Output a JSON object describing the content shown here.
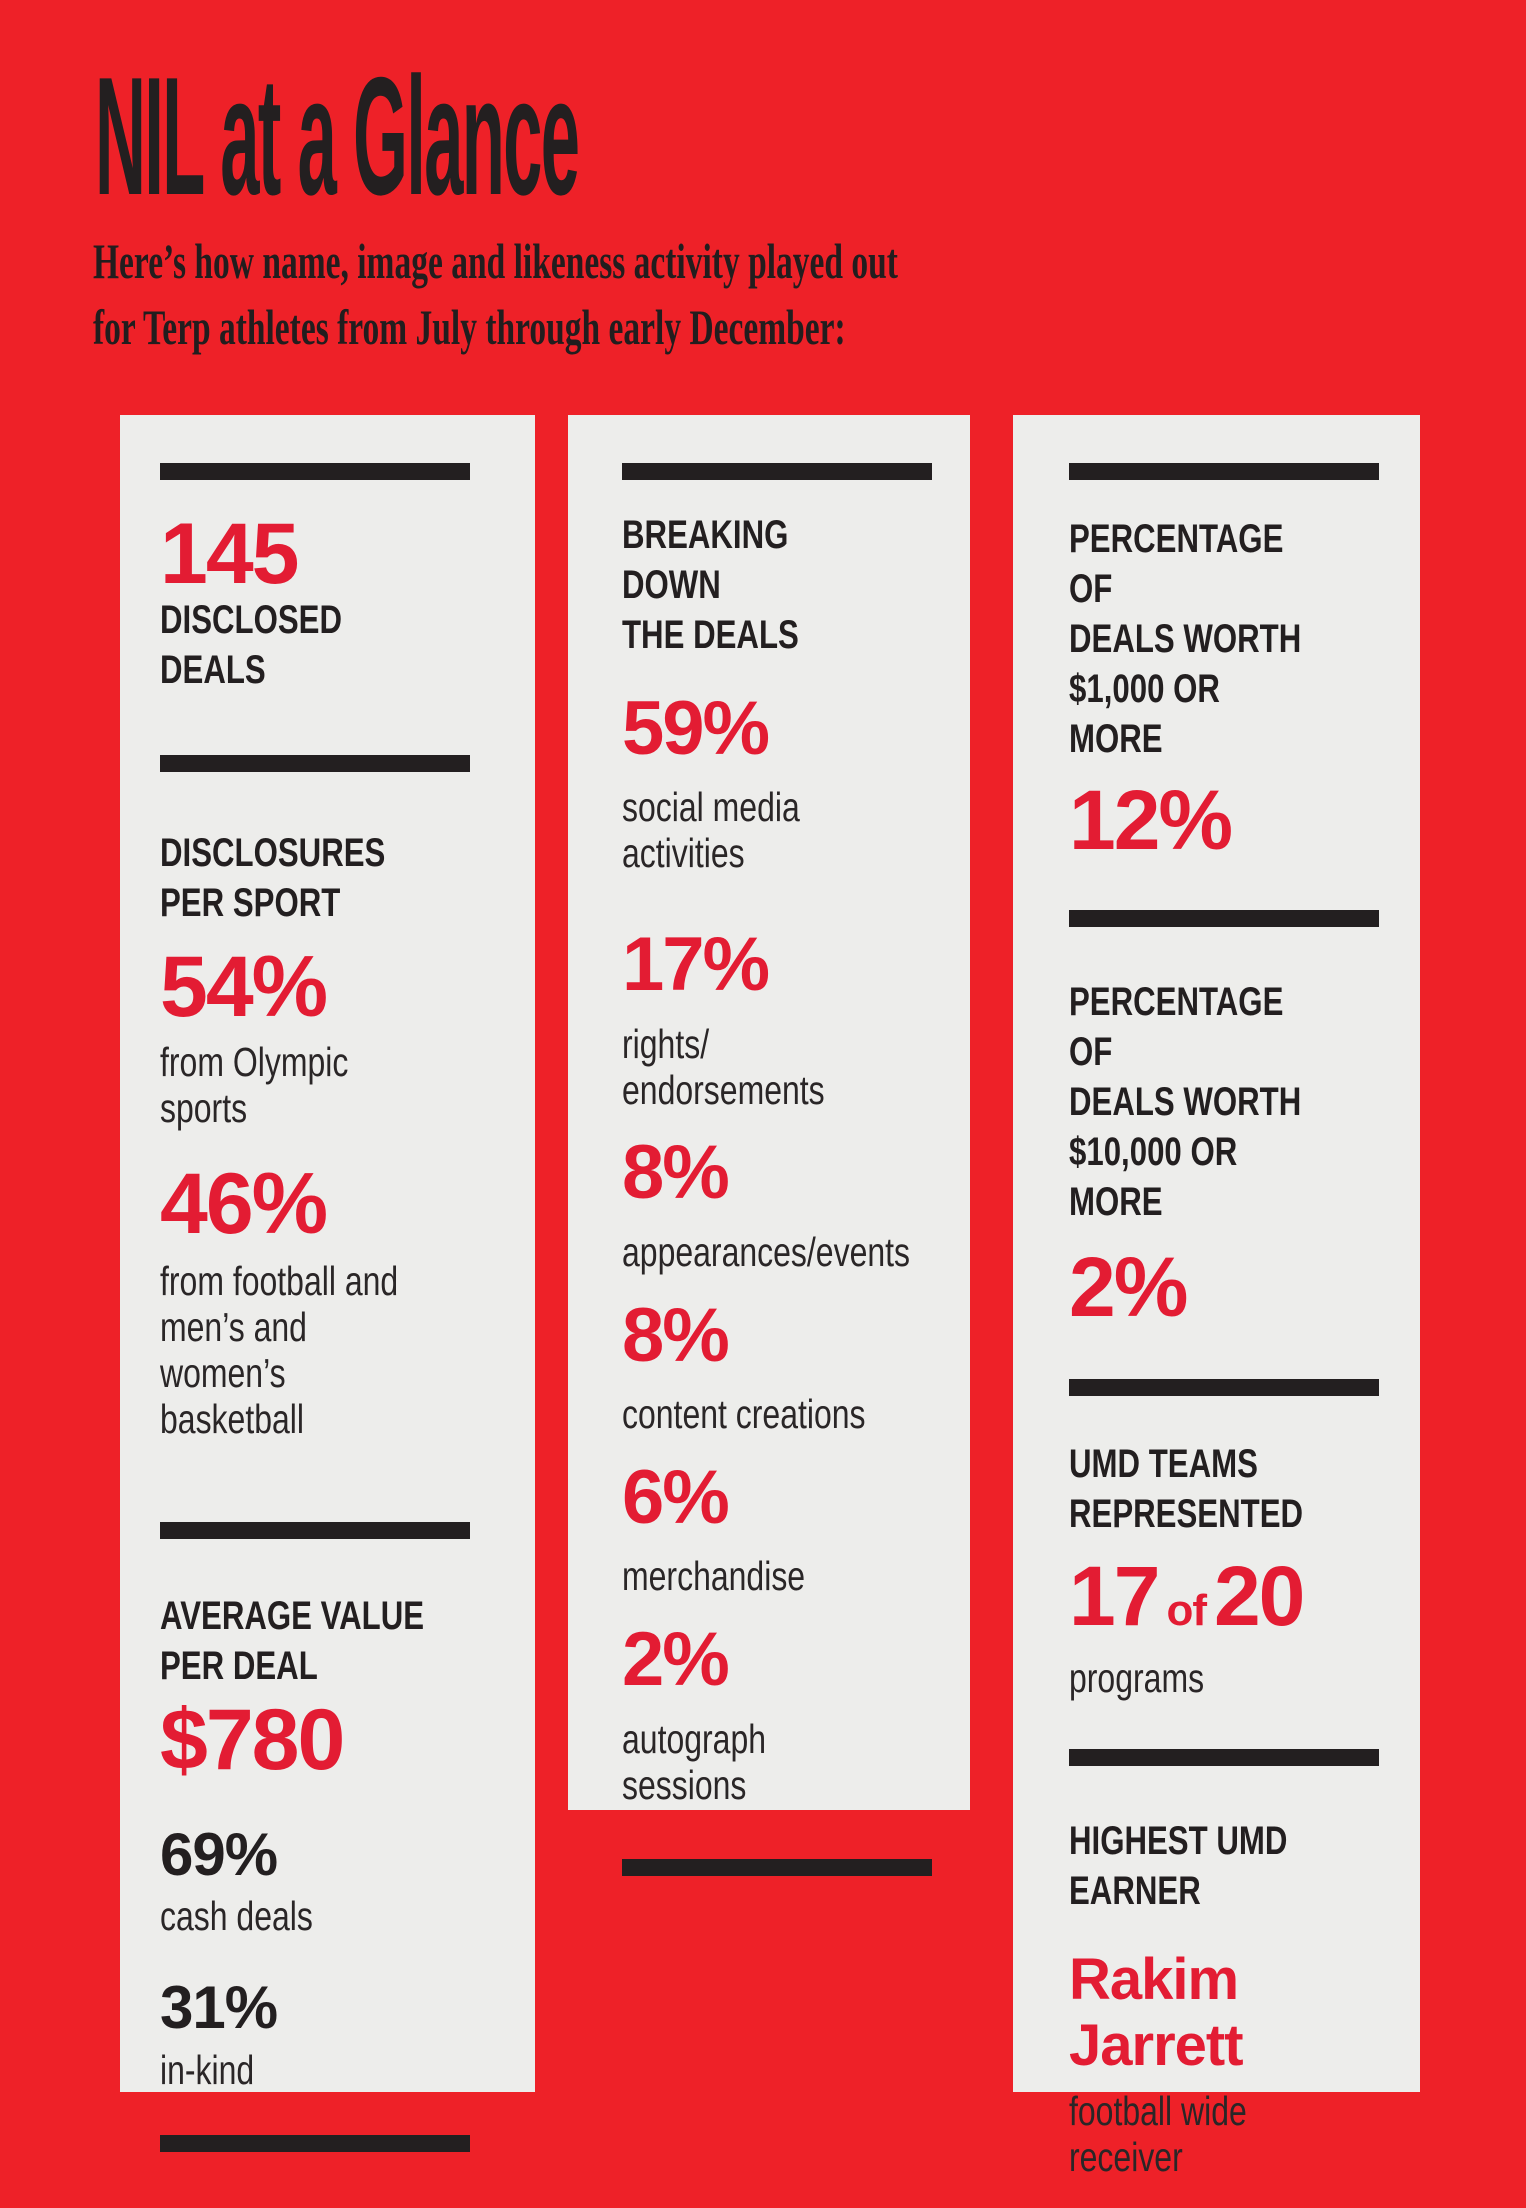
{
  "page": {
    "title": "NIL at a Glance",
    "subtitle": "Here’s how name, image and likeness activity played out\nfor Terp athletes from July through early December:"
  },
  "colors": {
    "background_red": "#ee2128",
    "card_gray": "#ededeb",
    "ink_black": "#231f20",
    "accent_red": "#e31c33"
  },
  "card1": {
    "stat_deals": {
      "value": "145",
      "label": "DISCLOSED\nDEALS"
    },
    "header_per_sport": "DISCLOSURES\nPER SPORT",
    "stat_olympic": {
      "value": "54%",
      "label": "from Olympic sports"
    },
    "stat_football": {
      "value": "46%",
      "label": "from football and\nmen’s and women’s\nbasketball"
    },
    "header_avg": "AVERAGE VALUE\nPER DEAL",
    "stat_avg_value": "$780",
    "stat_cash": {
      "value": "69%",
      "label": "cash deals"
    },
    "stat_inkind": {
      "value": "31%",
      "label": "in-kind"
    }
  },
  "card2": {
    "header": "BREAKING DOWN\nTHE DEALS",
    "stats": [
      {
        "value": "59%",
        "label": "social media\nactivities"
      },
      {
        "value": "17%",
        "label": "rights/\nendorsements"
      },
      {
        "value": "8%",
        "label": "appearances/events"
      },
      {
        "value": "8%",
        "label": "content creations"
      },
      {
        "value": "6%",
        "label": "merchandise"
      },
      {
        "value": "2%",
        "label": "autograph sessions"
      }
    ]
  },
  "card3": {
    "header_1k": "PERCENTAGE OF\nDEALS WORTH\n$1,000 OR MORE",
    "value_1k": "12%",
    "header_10k": "PERCENTAGE OF\nDEALS WORTH\n$10,000 OR MORE",
    "value_10k": "2%",
    "header_teams": "UMD TEAMS\nREPRESENTED",
    "teams": {
      "a": "17",
      "of": "of",
      "b": "20",
      "label": "programs"
    },
    "header_earner": "HIGHEST UMD\nEARNER",
    "earner": {
      "name": "Rakim\nJarrett",
      "label": "football wide\nreceiver"
    }
  },
  "chart_data": {
    "type": "table",
    "title": "NIL at a Glance",
    "subtitle": "Here’s how name, image and likeness activity played out for Terp athletes from July through early December:",
    "stats": [
      {
        "label": "Disclosed deals",
        "value": 145
      },
      {
        "group": "Disclosures per sport (%)",
        "items": [
          {
            "label": "from Olympic sports",
            "value": 54
          },
          {
            "label": "from football and men’s and women’s basketball",
            "value": 46
          }
        ]
      },
      {
        "label": "Average value per deal (USD)",
        "value": 780,
        "breakdown": [
          {
            "label": "cash deals (%)",
            "value": 69
          },
          {
            "label": "in-kind (%)",
            "value": 31
          }
        ]
      },
      {
        "group": "Breaking down the deals (%)",
        "items": [
          {
            "label": "social media activities",
            "value": 59
          },
          {
            "label": "rights/endorsements",
            "value": 17
          },
          {
            "label": "appearances/events",
            "value": 8
          },
          {
            "label": "content creations",
            "value": 8
          },
          {
            "label": "merchandise",
            "value": 6
          },
          {
            "label": "autograph sessions",
            "value": 2
          }
        ]
      },
      {
        "label": "Percentage of deals worth $1,000 or more",
        "value": 12
      },
      {
        "label": "Percentage of deals worth $10,000 or more",
        "value": 2
      },
      {
        "label": "UMD teams represented",
        "value": "17 of 20 programs"
      },
      {
        "label": "Highest UMD earner",
        "value": "Rakim Jarrett, football wide receiver"
      }
    ]
  }
}
